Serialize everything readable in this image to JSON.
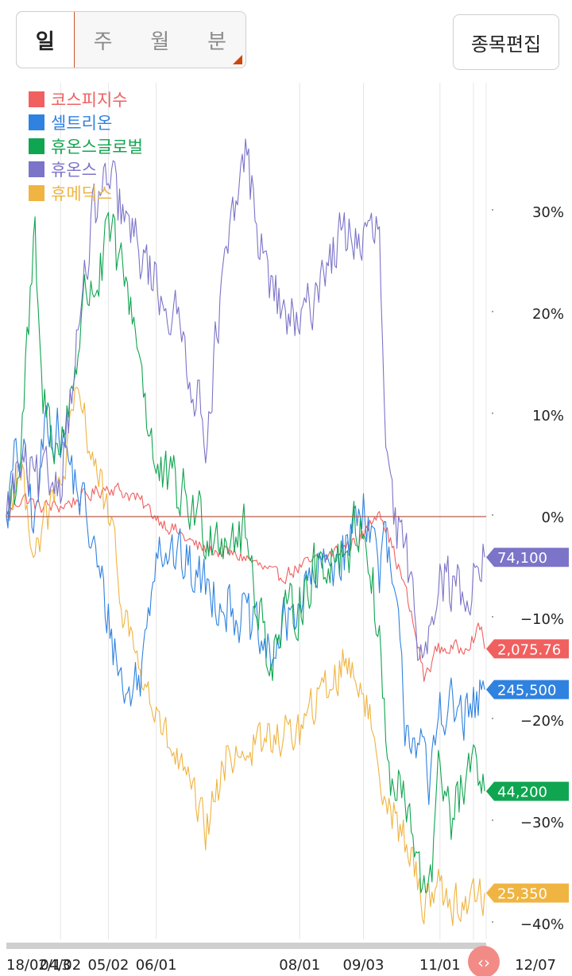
{
  "period_tabs": [
    {
      "label": "일",
      "active": true
    },
    {
      "label": "주",
      "active": false
    },
    {
      "label": "월",
      "active": false
    },
    {
      "label": "분",
      "active": false
    }
  ],
  "edit_button": "종목편집",
  "colors": {
    "kospi": "#f0605f",
    "celltrion": "#2f82e0",
    "huons_global": "#10a550",
    "huons": "#7b74c8",
    "humedix": "#efb441"
  },
  "chart_data": {
    "type": "line",
    "y_unit": "%",
    "ylim": [
      -40,
      40
    ],
    "y_ticks": [
      {
        "value": 30,
        "label": "30%"
      },
      {
        "value": 20,
        "label": "20%"
      },
      {
        "value": 10,
        "label": "10%"
      },
      {
        "value": 0,
        "label": "0%"
      },
      {
        "value": -10,
        "label": "−10%"
      },
      {
        "value": -20,
        "label": "−20%"
      },
      {
        "value": -30,
        "label": "−30%"
      },
      {
        "value": -40,
        "label": "−40%"
      }
    ],
    "x_ticks": [
      "18/02/13",
      "04/02",
      "05/02",
      "06/01",
      "08/01",
      "09/03",
      "11/01",
      "12/07"
    ],
    "x_tick_index": [
      0,
      34,
      64,
      94,
      184,
      224,
      272,
      300
    ],
    "n_points": 301,
    "legend_position": "top-left",
    "series": [
      {
        "name": "코스피지수",
        "key": "kospi",
        "last_label": "2,075.76",
        "anchors": [
          [
            0,
            0
          ],
          [
            10,
            2
          ],
          [
            20,
            1
          ],
          [
            34,
            1
          ],
          [
            50,
            2
          ],
          [
            64,
            3
          ],
          [
            80,
            2
          ],
          [
            94,
            0
          ],
          [
            120,
            -3
          ],
          [
            150,
            -4
          ],
          [
            170,
            -6
          ],
          [
            184,
            -5
          ],
          [
            200,
            -4
          ],
          [
            224,
            -2
          ],
          [
            234,
            1
          ],
          [
            250,
            -7
          ],
          [
            260,
            -14
          ],
          [
            262,
            -16
          ],
          [
            270,
            -13
          ],
          [
            285,
            -13
          ],
          [
            298,
            -11
          ],
          [
            300,
            -13
          ]
        ]
      },
      {
        "name": "셀트리온",
        "key": "celltrion",
        "last_label": "245,500",
        "anchors": [
          [
            0,
            0
          ],
          [
            5,
            5
          ],
          [
            10,
            6
          ],
          [
            18,
            -1
          ],
          [
            25,
            10
          ],
          [
            34,
            8
          ],
          [
            50,
            0
          ],
          [
            64,
            -10
          ],
          [
            75,
            -18
          ],
          [
            85,
            -15
          ],
          [
            94,
            -2
          ],
          [
            120,
            -6
          ],
          [
            150,
            -10
          ],
          [
            165,
            -14
          ],
          [
            184,
            -8
          ],
          [
            200,
            -5
          ],
          [
            214,
            -3
          ],
          [
            224,
            2
          ],
          [
            234,
            -5
          ],
          [
            238,
            -3
          ],
          [
            245,
            -10
          ],
          [
            250,
            -20
          ],
          [
            260,
            -22
          ],
          [
            265,
            -28
          ],
          [
            272,
            -18
          ],
          [
            280,
            -19
          ],
          [
            290,
            -20
          ],
          [
            300,
            -17
          ]
        ]
      },
      {
        "name": "휴온스글로벌",
        "key": "huons_global",
        "last_label": "44,200",
        "anchors": [
          [
            0,
            0
          ],
          [
            8,
            5
          ],
          [
            18,
            27
          ],
          [
            22,
            12
          ],
          [
            34,
            6
          ],
          [
            50,
            22
          ],
          [
            60,
            24
          ],
          [
            64,
            28
          ],
          [
            80,
            20
          ],
          [
            94,
            4
          ],
          [
            110,
            2
          ],
          [
            125,
            -1
          ],
          [
            150,
            -2
          ],
          [
            165,
            -14
          ],
          [
            184,
            -8
          ],
          [
            200,
            -4
          ],
          [
            214,
            -3
          ],
          [
            224,
            0
          ],
          [
            234,
            -12
          ],
          [
            240,
            -26
          ],
          [
            250,
            -28
          ],
          [
            255,
            -32
          ],
          [
            260,
            -37
          ],
          [
            268,
            -33
          ],
          [
            272,
            -24
          ],
          [
            280,
            -30
          ],
          [
            290,
            -25
          ],
          [
            300,
            -27
          ]
        ]
      },
      {
        "name": "휴온스",
        "key": "huons",
        "last_label": "74,100",
        "anchors": [
          [
            0,
            0
          ],
          [
            8,
            5
          ],
          [
            20,
            3
          ],
          [
            34,
            4
          ],
          [
            45,
            18
          ],
          [
            55,
            30
          ],
          [
            64,
            33
          ],
          [
            80,
            27
          ],
          [
            94,
            23
          ],
          [
            110,
            18
          ],
          [
            125,
            8
          ],
          [
            135,
            22
          ],
          [
            150,
            36
          ],
          [
            160,
            26
          ],
          [
            170,
            21
          ],
          [
            184,
            18
          ],
          [
            200,
            25
          ],
          [
            214,
            28
          ],
          [
            224,
            27
          ],
          [
            234,
            28
          ],
          [
            238,
            5
          ],
          [
            244,
            -1
          ],
          [
            254,
            -6
          ],
          [
            260,
            -14
          ],
          [
            270,
            -6
          ],
          [
            280,
            -7
          ],
          [
            290,
            -7
          ],
          [
            300,
            -4
          ]
        ]
      },
      {
        "name": "휴메딕스",
        "key": "humedix",
        "last_label": "25,350",
        "anchors": [
          [
            0,
            0
          ],
          [
            8,
            5
          ],
          [
            18,
            -3
          ],
          [
            34,
            3
          ],
          [
            45,
            12
          ],
          [
            64,
            0
          ],
          [
            72,
            -8
          ],
          [
            80,
            -13
          ],
          [
            94,
            -20
          ],
          [
            110,
            -25
          ],
          [
            125,
            -31
          ],
          [
            140,
            -23
          ],
          [
            150,
            -23
          ],
          [
            165,
            -22
          ],
          [
            184,
            -21
          ],
          [
            200,
            -17
          ],
          [
            214,
            -14
          ],
          [
            224,
            -17
          ],
          [
            234,
            -25
          ],
          [
            245,
            -30
          ],
          [
            255,
            -34
          ],
          [
            260,
            -38
          ],
          [
            270,
            -36
          ],
          [
            280,
            -38
          ],
          [
            290,
            -38
          ],
          [
            300,
            -37
          ]
        ]
      }
    ]
  }
}
